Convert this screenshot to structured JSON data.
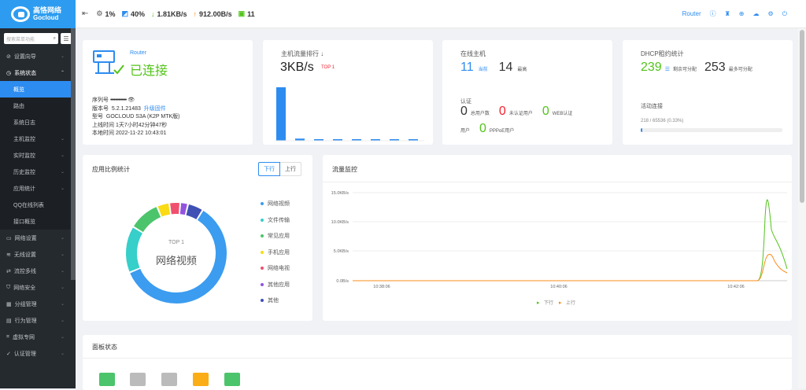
{
  "brand": {
    "cn": "高恪网络",
    "en": "Gocloud"
  },
  "sidebar": {
    "search_placeholder": "搜索菜单功能",
    "items": [
      {
        "label": "设置向导",
        "open": false
      },
      {
        "label": "系统状态",
        "open": true
      },
      {
        "label": "网络设置"
      },
      {
        "label": "无线设置"
      },
      {
        "label": "流控多线"
      },
      {
        "label": "网络安全"
      },
      {
        "label": "分组管理"
      },
      {
        "label": "行为管理"
      },
      {
        "label": "虚拟专网"
      },
      {
        "label": "认证管理"
      }
    ],
    "sub_items": [
      "概览",
      "路由",
      "系统日志",
      "主机监控",
      "实时监控",
      "历史监控",
      "应用统计",
      "QQ在线列表",
      "接口概览"
    ]
  },
  "topbar": {
    "cpu": "1%",
    "mem": "40%",
    "down": "1.81KB/s",
    "up": "912.00B/s",
    "hosts": "11",
    "device": "Router"
  },
  "router_card": {
    "name": "Router",
    "status": "已连接",
    "serial_label": "序列号",
    "serial_value": "••••••••••••••",
    "version_label": "版本号",
    "version_value": "5.2.1.21483",
    "upgrade": "升级固件",
    "model_label": "型号",
    "model_value": "GOCLOUD S3A (K2P MTK版)",
    "uptime_label": "上线时间",
    "uptime_value": "1天7小时42分钟47秒",
    "time_label": "本地时间",
    "time_value": "2022-11-22 10:43:01"
  },
  "traffic_rank": {
    "title": "主机流量排行 ↓",
    "value": "3KB/s",
    "badge": "TOP 1",
    "bars": [
      1.0,
      0.04,
      0.03,
      0.03,
      0.03,
      0.03,
      0.02,
      0.015
    ]
  },
  "online_hosts": {
    "title": "在线主机",
    "current": "11",
    "current_label": "当前",
    "max": "14",
    "max_label": "最高",
    "auth_title": "认证",
    "total": "0",
    "total_label": "总用户数",
    "unauth": "0",
    "unauth_label": "未认证用户",
    "web": "0",
    "web_label": "WEB认证",
    "user_label": "用户",
    "pppoe": "0",
    "pppoe_label": "PPPoE用户"
  },
  "dhcp": {
    "title": "DHCP租约统计",
    "remaining": "239",
    "remaining_label": "剩余可分配",
    "max": "253",
    "max_label": "最多可分配",
    "conn_title": "活动连接",
    "conn_value": "218 / 65536 (0.33%)",
    "conn_ratio": 0.0033
  },
  "app_stats": {
    "title": "应用比例统计",
    "tab_down": "下行",
    "tab_up": "上行",
    "center_top": "TOP 1",
    "center_label": "网络视频",
    "legend": [
      {
        "label": "网络视频",
        "color": "#3b9cf0",
        "value": 60
      },
      {
        "label": "文件传输",
        "color": "#36cfc9",
        "value": 15
      },
      {
        "label": "常见应用",
        "color": "#4cc46b",
        "value": 10
      },
      {
        "label": "手机应用",
        "color": "#fadb14",
        "value": 4
      },
      {
        "label": "网络电视",
        "color": "#f0506e",
        "value": 3.5
      },
      {
        "label": "其他应用",
        "color": "#9254de",
        "value": 2.5
      },
      {
        "label": "其他",
        "color": "#3f51b5",
        "value": 5
      }
    ]
  },
  "monitor": {
    "title": "流量监控",
    "y_ticks": [
      "15.0KB/s",
      "10.0KB/s",
      "5.0KB/s",
      "0.0B/s"
    ],
    "x_ticks": [
      "10:38:06",
      "10:40:06",
      "10:42:06"
    ],
    "legend_down": "下行",
    "legend_up": "上行",
    "down_color": "#52c41a",
    "up_color": "#fa8c16"
  },
  "panel": {
    "title": "面板状态"
  }
}
